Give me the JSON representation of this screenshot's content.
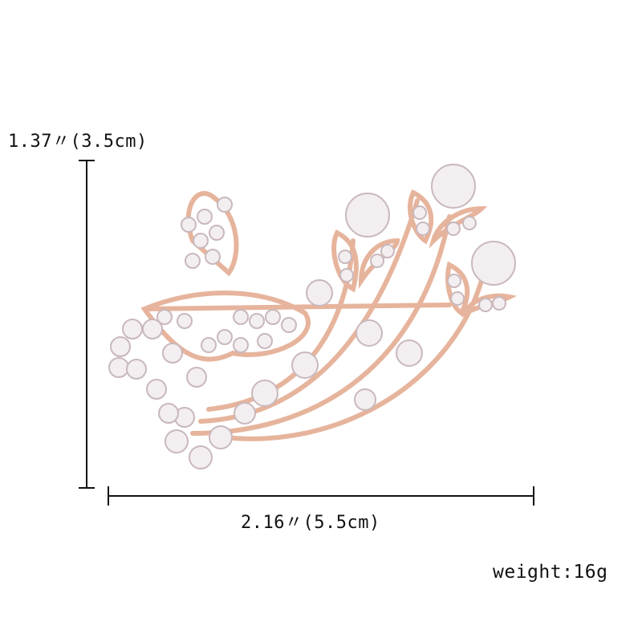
{
  "dimensions": {
    "height_label": "1.37〃(3.5cm)",
    "width_label": "2.16〃(5.5cm)"
  },
  "weight_label": "weight:16g",
  "product": {
    "description": "rose gold butterfly and leaf rhinestone brooch",
    "metal_color": "#e6b49c",
    "crystal_color": "#f3eef0"
  }
}
